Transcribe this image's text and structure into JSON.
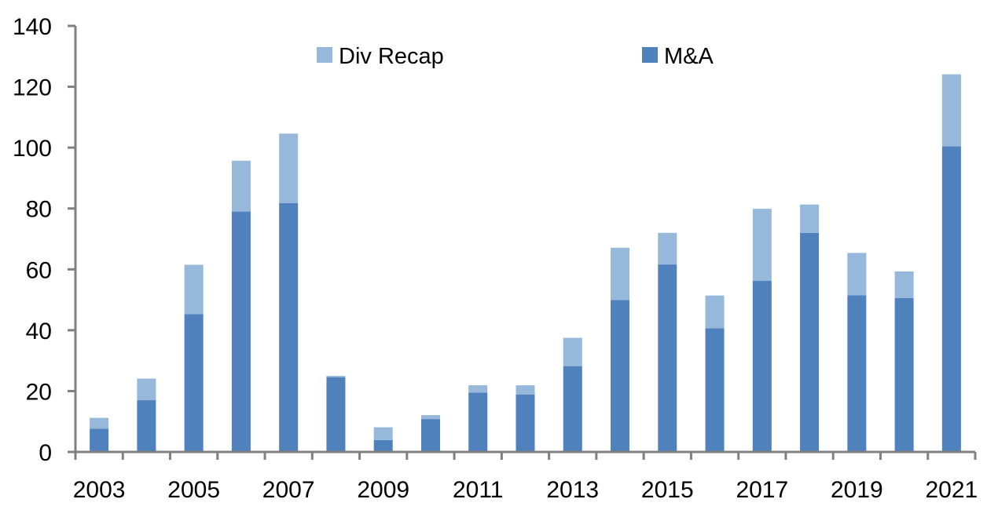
{
  "chart_data": {
    "type": "bar",
    "stacked": true,
    "title": "",
    "xlabel": "",
    "ylabel": "",
    "ylim": [
      0,
      140
    ],
    "yticks": [
      0,
      20,
      40,
      60,
      80,
      100,
      120,
      140
    ],
    "grid": false,
    "legend_position": "top-center",
    "categories": [
      "2003",
      "2004",
      "2005",
      "2006",
      "2007",
      "2008",
      "2009",
      "2010",
      "2011",
      "2012",
      "2013",
      "2014",
      "2015",
      "2016",
      "2017",
      "2018",
      "2019",
      "2020",
      "2021"
    ],
    "xtick_labels": [
      "2003",
      "2005",
      "2007",
      "2009",
      "2011",
      "2013",
      "2015",
      "2017",
      "2019",
      "2021"
    ],
    "series": [
      {
        "name": "M&A",
        "color": "#4f81bd",
        "values": [
          7.6,
          17.0,
          45.3,
          79.0,
          81.8,
          24.5,
          3.9,
          10.8,
          19.5,
          18.9,
          28.2,
          49.9,
          61.6,
          40.6,
          56.2,
          72.0,
          51.5,
          50.6,
          100.4
        ]
      },
      {
        "name": "Div Recap",
        "color": "#95b8db",
        "values": [
          3.6,
          7.1,
          16.2,
          16.7,
          22.8,
          0.5,
          4.2,
          1.3,
          2.4,
          3.0,
          9.3,
          17.2,
          10.4,
          10.8,
          23.7,
          9.3,
          13.9,
          8.7,
          23.7
        ]
      }
    ],
    "legend": [
      {
        "name": "Div Recap",
        "color": "#95b8db"
      },
      {
        "name": "M&A",
        "color": "#4f81bd"
      }
    ],
    "axis_color": "#808080"
  }
}
